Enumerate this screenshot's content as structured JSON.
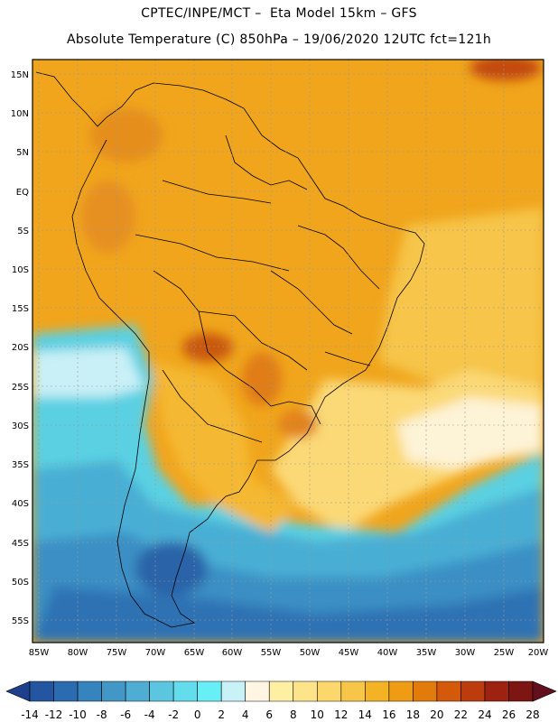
{
  "header": {
    "title_line1": "CPTEC/INPE/MCT –  Eta Model 15km – GFS",
    "title_line2": "Absolute Temperature (C) 850hPa – 19/06/2020 12UTC fct=121h"
  },
  "map": {
    "lat_labels": [
      "15N",
      "10N",
      "5N",
      "EQ",
      "5S",
      "10S",
      "15S",
      "20S",
      "25S",
      "30S",
      "35S",
      "40S",
      "45S",
      "50S",
      "55S"
    ],
    "lon_labels": [
      "85W",
      "80W",
      "75W",
      "70W",
      "65W",
      "60W",
      "55W",
      "50W",
      "45W",
      "40W",
      "35W",
      "30W",
      "25W",
      "20W"
    ],
    "gridlines": "dotted"
  },
  "colorbar": {
    "labels": [
      "-14",
      "-12",
      "-10",
      "-8",
      "-6",
      "-4",
      "-2",
      "0",
      "2",
      "4",
      "6",
      "8",
      "10",
      "12",
      "14",
      "16",
      "18",
      "20",
      "22",
      "24",
      "26",
      "28"
    ],
    "colors": [
      "#1d3f8c",
      "#2455a0",
      "#2b6bb0",
      "#3684bd",
      "#4397c6",
      "#4fadd4",
      "#5cc6e0",
      "#63dcec",
      "#66f0f5",
      "#c9f2f8",
      "#fef6e3",
      "#fef0a3",
      "#fde38a",
      "#fbd76c",
      "#f7c548",
      "#f4b225",
      "#ef9b14",
      "#e37a0c",
      "#d4590a",
      "#bd3c0d",
      "#9e2210",
      "#7d1512",
      "#62101d"
    ]
  }
}
